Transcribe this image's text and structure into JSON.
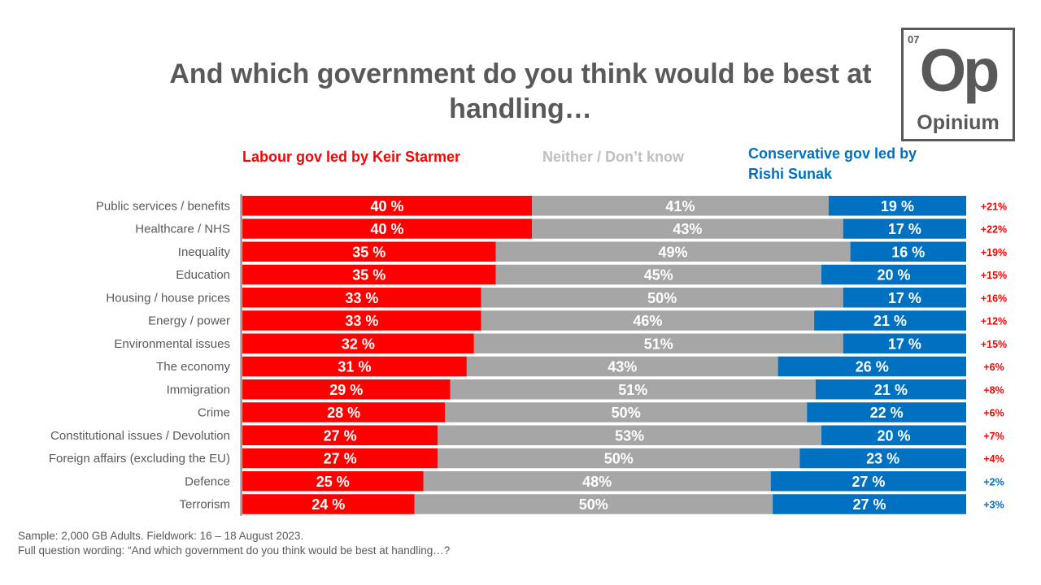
{
  "title": "And which government do you think would be best at handling…",
  "logo": {
    "number": "07",
    "symbol": "Op",
    "name": "Opinium"
  },
  "legend": {
    "labour": "Labour gov led by Keir Starmer",
    "neither": "Neither / Don’t know",
    "conservative": "Conservative gov led by Rishi Sunak"
  },
  "colors": {
    "labour": "#ff0000",
    "neither": "#a6a6a6",
    "conservative": "#0070c0",
    "text": "#595959"
  },
  "chart_data": {
    "type": "bar",
    "orientation": "horizontal-stacked-100",
    "categories": [
      "Public services / benefits",
      "Healthcare / NHS",
      "Inequality",
      "Education",
      "Housing / house prices",
      "Energy / power",
      "Environmental issues",
      "The economy",
      "Immigration",
      "Crime",
      "Constitutional issues / Devolution",
      "Foreign affairs (excluding the EU)",
      "Defence",
      "Terrorism"
    ],
    "series": [
      {
        "name": "Labour gov led by Keir Starmer",
        "values": [
          40,
          40,
          35,
          35,
          33,
          33,
          32,
          31,
          29,
          28,
          27,
          27,
          25,
          24
        ],
        "labels": [
          "40 %",
          "40 %",
          "35 %",
          "35 %",
          "33 %",
          "33 %",
          "32 %",
          "31 %",
          "29 %",
          "28 %",
          "27 %",
          "27 %",
          "25 %",
          "24 %"
        ]
      },
      {
        "name": "Neither / Don’t know",
        "values": [
          41,
          43,
          49,
          45,
          50,
          46,
          51,
          43,
          51,
          50,
          53,
          50,
          48,
          50
        ],
        "labels": [
          "41%",
          "43%",
          "49%",
          "45%",
          "50%",
          "46%",
          "51%",
          "43%",
          "51%",
          "50%",
          "53%",
          "50%",
          "48%",
          "50%"
        ]
      },
      {
        "name": "Conservative gov led by Rishi Sunak",
        "values": [
          19,
          17,
          16,
          20,
          17,
          21,
          17,
          26,
          21,
          22,
          20,
          23,
          27,
          27
        ],
        "labels": [
          "19 %",
          "17 %",
          "16 %",
          "20 %",
          "17 %",
          "21 %",
          "17 %",
          "26 %",
          "21 %",
          "22 %",
          "20 %",
          "23 %",
          "27 %",
          "27 %"
        ]
      }
    ],
    "net_lead": {
      "labels": [
        "+21%",
        "+22%",
        "+19%",
        "+15%",
        "+16%",
        "+12%",
        "+15%",
        "+6%",
        "+8%",
        "+6%",
        "+7%",
        "+4%",
        "+2%",
        "+3%"
      ],
      "colors": [
        "#ff0000",
        "#ff0000",
        "#ff0000",
        "#ff0000",
        "#ff0000",
        "#ff0000",
        "#ff0000",
        "#ff0000",
        "#ff0000",
        "#ff0000",
        "#ff0000",
        "#ff0000",
        "#0070c0",
        "#0070c0"
      ]
    }
  },
  "footnote": {
    "sample": "Sample: 2,000 GB Adults. Fieldwork: 16 – 18 August 2023.",
    "question": "Full question wording: “And which government do you think would be best at handling…?"
  }
}
